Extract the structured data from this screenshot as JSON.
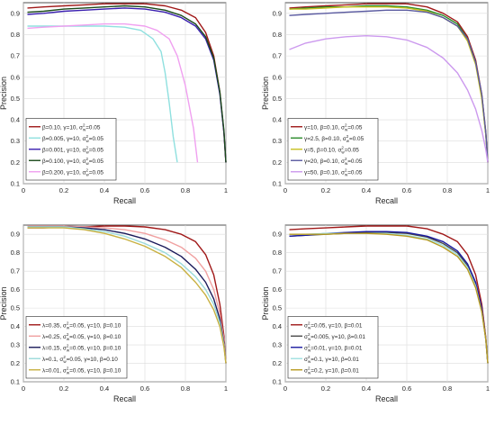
{
  "chart_data": [
    {
      "type": "line",
      "xlabel": "Recall",
      "ylabel": "Precision",
      "xlim": [
        0,
        1
      ],
      "ylim": [
        0.1,
        0.95
      ],
      "xticks": [
        "0",
        "0.2",
        "0.4",
        "0.6",
        "0.8",
        "1"
      ],
      "yticks": [
        "0.1",
        "0.2",
        "0.3",
        "0.4",
        "0.5",
        "0.6",
        "0.7",
        "0.8",
        "0.9"
      ],
      "grid": true,
      "legend_position": "bottom-left",
      "series": [
        {
          "legend": {
            "pre": "β=0.10, γ=10, ",
            "sym": "σ",
            "sub": "w",
            "sup": "2",
            "post": "=0.05"
          },
          "color": "#a01818",
          "x": [
            0.02,
            0.1,
            0.2,
            0.3,
            0.4,
            0.5,
            0.6,
            0.7,
            0.78,
            0.85,
            0.9,
            0.94,
            0.97,
            0.99,
            1.0
          ],
          "y": [
            0.925,
            0.93,
            0.935,
            0.94,
            0.945,
            0.945,
            0.945,
            0.935,
            0.915,
            0.88,
            0.81,
            0.7,
            0.53,
            0.34,
            0.2
          ]
        },
        {
          "legend": {
            "pre": "β=0.005, γ=10, ",
            "sym": "σ",
            "sub": "w",
            "sup": "2",
            "post": "=0.05"
          },
          "color": "#8fe0df",
          "x": [
            0.02,
            0.1,
            0.2,
            0.3,
            0.4,
            0.5,
            0.58,
            0.64,
            0.68,
            0.7,
            0.72,
            0.74,
            0.76
          ],
          "y": [
            0.84,
            0.84,
            0.84,
            0.84,
            0.84,
            0.835,
            0.82,
            0.78,
            0.72,
            0.62,
            0.48,
            0.32,
            0.2
          ]
        },
        {
          "legend": {
            "pre": "β=0.001, γ=10, ",
            "sym": "σ",
            "sub": "w",
            "sup": "2",
            "post": "=0.05"
          },
          "color": "#3a1fb0",
          "x": [
            0.02,
            0.1,
            0.2,
            0.3,
            0.4,
            0.5,
            0.6,
            0.7,
            0.78,
            0.85,
            0.9,
            0.94,
            0.97,
            0.99,
            1.0
          ],
          "y": [
            0.895,
            0.9,
            0.91,
            0.915,
            0.92,
            0.925,
            0.92,
            0.905,
            0.88,
            0.84,
            0.78,
            0.68,
            0.52,
            0.34,
            0.2
          ]
        },
        {
          "legend": {
            "pre": "β=0.100, γ=10, ",
            "sym": "σ",
            "sub": "w",
            "sup": "2",
            "post": "=0.05"
          },
          "color": "#1a4a1a",
          "x": [
            0.02,
            0.1,
            0.2,
            0.3,
            0.4,
            0.5,
            0.6,
            0.7,
            0.78,
            0.85,
            0.9,
            0.94,
            0.97,
            0.99,
            1.0
          ],
          "y": [
            0.905,
            0.91,
            0.92,
            0.925,
            0.93,
            0.935,
            0.93,
            0.915,
            0.89,
            0.85,
            0.79,
            0.69,
            0.53,
            0.35,
            0.2
          ]
        },
        {
          "legend": {
            "pre": "β=0.200, γ=10, ",
            "sym": "σ",
            "sub": "w",
            "sup": "2",
            "post": "=0.05"
          },
          "color": "#f0a0f0",
          "x": [
            0.02,
            0.1,
            0.2,
            0.3,
            0.4,
            0.5,
            0.6,
            0.66,
            0.72,
            0.76,
            0.8,
            0.84,
            0.86
          ],
          "y": [
            0.83,
            0.835,
            0.84,
            0.845,
            0.85,
            0.85,
            0.84,
            0.82,
            0.78,
            0.7,
            0.56,
            0.36,
            0.2
          ]
        }
      ]
    },
    {
      "type": "line",
      "xlabel": "Recall",
      "ylabel": "Precision",
      "xlim": [
        0,
        1
      ],
      "ylim": [
        0.1,
        0.95
      ],
      "xticks": [
        "0",
        "0.2",
        "0.4",
        "0.6",
        "0.8",
        "1"
      ],
      "yticks": [
        "0.1",
        "0.2",
        "0.3",
        "0.4",
        "0.5",
        "0.6",
        "0.7",
        "0.8",
        "0.9"
      ],
      "grid": true,
      "legend_position": "bottom-left",
      "series": [
        {
          "legend": {
            "pre": "γ=10, β=0.10, ",
            "sym": "σ",
            "sub": "w",
            "sup": "2",
            "post": "=0.05"
          },
          "color": "#a01818",
          "x": [
            0.02,
            0.1,
            0.2,
            0.3,
            0.4,
            0.5,
            0.6,
            0.7,
            0.78,
            0.85,
            0.9,
            0.94,
            0.97,
            0.99,
            1.0
          ],
          "y": [
            0.925,
            0.93,
            0.935,
            0.94,
            0.945,
            0.945,
            0.945,
            0.93,
            0.9,
            0.86,
            0.79,
            0.68,
            0.52,
            0.34,
            0.2
          ]
        },
        {
          "legend": {
            "pre": "γ=2.5, β=0.10, ",
            "sym": "σ",
            "sub": "w",
            "sup": "2",
            "post": "=0.05"
          },
          "color": "#2a8a2a",
          "x": [
            0.02,
            0.1,
            0.2,
            0.3,
            0.4,
            0.5,
            0.6,
            0.7,
            0.78,
            0.85,
            0.9,
            0.94,
            0.97,
            0.99,
            1.0
          ],
          "y": [
            0.92,
            0.925,
            0.93,
            0.93,
            0.935,
            0.935,
            0.93,
            0.915,
            0.89,
            0.85,
            0.78,
            0.67,
            0.51,
            0.33,
            0.2
          ]
        },
        {
          "legend": {
            "pre": "γ=5, β=0.10, ",
            "sym": "σ",
            "sub": "w",
            "sup": "2",
            "post": "=0.05"
          },
          "color": "#c8c020",
          "x": [
            0.02,
            0.1,
            0.2,
            0.3,
            0.4,
            0.5,
            0.6,
            0.7,
            0.78,
            0.85,
            0.9,
            0.94,
            0.97,
            0.99,
            1.0
          ],
          "y": [
            0.92,
            0.92,
            0.925,
            0.93,
            0.93,
            0.93,
            0.925,
            0.91,
            0.88,
            0.84,
            0.77,
            0.66,
            0.5,
            0.33,
            0.2
          ]
        },
        {
          "legend": {
            "pre": "γ=20, β=0.10, ",
            "sym": "σ",
            "sub": "w",
            "sup": "2",
            "post": "=0.05"
          },
          "color": "#5a5aa0",
          "x": [
            0.02,
            0.1,
            0.2,
            0.3,
            0.4,
            0.5,
            0.6,
            0.7,
            0.78,
            0.85,
            0.9,
            0.94,
            0.97,
            0.99,
            1.0
          ],
          "y": [
            0.89,
            0.895,
            0.9,
            0.905,
            0.91,
            0.915,
            0.915,
            0.905,
            0.88,
            0.84,
            0.78,
            0.67,
            0.52,
            0.34,
            0.2
          ]
        },
        {
          "legend": {
            "pre": "γ=50, β=0.10, ",
            "sym": "σ",
            "sub": "w",
            "sup": "2",
            "post": "=0.05"
          },
          "color": "#cc99ee",
          "x": [
            0.02,
            0.1,
            0.2,
            0.3,
            0.4,
            0.5,
            0.6,
            0.7,
            0.78,
            0.85,
            0.9,
            0.94,
            0.97,
            0.99,
            1.0
          ],
          "y": [
            0.73,
            0.76,
            0.78,
            0.79,
            0.795,
            0.79,
            0.775,
            0.74,
            0.69,
            0.62,
            0.54,
            0.45,
            0.35,
            0.26,
            0.2
          ]
        }
      ]
    },
    {
      "type": "line",
      "xlabel": "Recall",
      "ylabel": "Precision",
      "xlim": [
        0,
        1
      ],
      "ylim": [
        0.1,
        0.95
      ],
      "xticks": [
        "0",
        "0.2",
        "0.4",
        "0.6",
        "0.8",
        "1"
      ],
      "yticks": [
        "0.1",
        "0.2",
        "0.3",
        "0.4",
        "0.5",
        "0.6",
        "0.7",
        "0.8",
        "0.9"
      ],
      "grid": true,
      "legend_position": "bottom-left",
      "series": [
        {
          "legend": {
            "pre": "λ=0.35, ",
            "sym": "σ",
            "sub": "w",
            "sup": "2",
            "post": "=0.05, γ=10, β=0.10"
          },
          "color": "#a01818",
          "x": [
            0.02,
            0.1,
            0.2,
            0.3,
            0.4,
            0.5,
            0.6,
            0.7,
            0.78,
            0.85,
            0.9,
            0.94,
            0.97,
            0.99,
            1.0
          ],
          "y": [
            0.935,
            0.935,
            0.94,
            0.94,
            0.945,
            0.945,
            0.94,
            0.925,
            0.9,
            0.86,
            0.79,
            0.68,
            0.52,
            0.35,
            0.2
          ]
        },
        {
          "legend": {
            "pre": "λ=0.25, ",
            "sym": "σ",
            "sub": "w",
            "sup": "2",
            "post": "=0.05, γ=10, β=0.10"
          },
          "color": "#f0a0a0",
          "x": [
            0.02,
            0.1,
            0.2,
            0.3,
            0.4,
            0.5,
            0.6,
            0.7,
            0.78,
            0.85,
            0.9,
            0.94,
            0.97,
            0.99,
            1.0
          ],
          "y": [
            0.945,
            0.945,
            0.945,
            0.94,
            0.935,
            0.925,
            0.905,
            0.87,
            0.83,
            0.77,
            0.7,
            0.6,
            0.47,
            0.33,
            0.2
          ]
        },
        {
          "legend": {
            "pre": "λ=0.15, ",
            "sym": "σ",
            "sub": "w",
            "sup": "2",
            "post": "=0.05, γ=10, β=0.10"
          },
          "color": "#1a1a5a",
          "x": [
            0.02,
            0.1,
            0.2,
            0.3,
            0.4,
            0.5,
            0.6,
            0.7,
            0.78,
            0.85,
            0.9,
            0.94,
            0.97,
            0.99,
            1.0
          ],
          "y": [
            0.94,
            0.94,
            0.94,
            0.935,
            0.925,
            0.905,
            0.875,
            0.83,
            0.78,
            0.71,
            0.64,
            0.55,
            0.44,
            0.31,
            0.2
          ]
        },
        {
          "legend": {
            "pre": "λ=0.1, ",
            "sym": "σ",
            "sub": "w",
            "sup": "2",
            "post": "=0.05, γ=10, β=0.10"
          },
          "color": "#9adada",
          "x": [
            0.02,
            0.1,
            0.2,
            0.3,
            0.4,
            0.5,
            0.6,
            0.7,
            0.78,
            0.85,
            0.9,
            0.94,
            0.97,
            0.99,
            1.0
          ],
          "y": [
            0.94,
            0.94,
            0.94,
            0.93,
            0.915,
            0.89,
            0.85,
            0.8,
            0.74,
            0.67,
            0.6,
            0.52,
            0.42,
            0.3,
            0.2
          ]
        },
        {
          "legend": {
            "pre": "λ=0.01, ",
            "sym": "σ",
            "sub": "w",
            "sup": "2",
            "post": "=0.05, γ=10, β=0.10"
          },
          "color": "#c8b040",
          "x": [
            0.02,
            0.1,
            0.2,
            0.3,
            0.4,
            0.5,
            0.6,
            0.7,
            0.78,
            0.85,
            0.9,
            0.94,
            0.97,
            0.99,
            1.0
          ],
          "y": [
            0.935,
            0.935,
            0.935,
            0.925,
            0.905,
            0.875,
            0.835,
            0.78,
            0.72,
            0.64,
            0.57,
            0.49,
            0.4,
            0.29,
            0.2
          ]
        }
      ]
    },
    {
      "type": "line",
      "xlabel": "Recall",
      "ylabel": "Precision",
      "xlim": [
        0,
        1
      ],
      "ylim": [
        0.1,
        0.95
      ],
      "xticks": [
        "0",
        "0.2",
        "0.4",
        "0.6",
        "0.8",
        "1"
      ],
      "yticks": [
        "0.1",
        "0.2",
        "0.3",
        "0.4",
        "0.5",
        "0.6",
        "0.7",
        "0.8",
        "0.9"
      ],
      "grid": true,
      "legend_position": "bottom-left",
      "series": [
        {
          "legend": {
            "pre": "",
            "sym": "σ",
            "sub": "w",
            "sup": "2",
            "post": "=0.05, γ=10, β=0.01"
          },
          "color": "#a01818",
          "x": [
            0.02,
            0.1,
            0.2,
            0.3,
            0.4,
            0.5,
            0.6,
            0.7,
            0.78,
            0.85,
            0.9,
            0.94,
            0.97,
            0.99,
            1.0
          ],
          "y": [
            0.925,
            0.93,
            0.935,
            0.94,
            0.945,
            0.945,
            0.945,
            0.93,
            0.9,
            0.86,
            0.79,
            0.68,
            0.52,
            0.34,
            0.2
          ]
        },
        {
          "legend": {
            "pre": "",
            "sym": "σ",
            "sub": "w",
            "sup": "2",
            "post": "=0.005, γ=10, β=0.01"
          },
          "color": "#4a4a4a",
          "x": [
            0.02,
            0.1,
            0.2,
            0.3,
            0.4,
            0.5,
            0.6,
            0.7,
            0.78,
            0.85,
            0.9,
            0.94,
            0.97,
            0.99,
            1.0
          ],
          "y": [
            0.89,
            0.895,
            0.9,
            0.905,
            0.91,
            0.91,
            0.905,
            0.885,
            0.85,
            0.8,
            0.73,
            0.63,
            0.49,
            0.33,
            0.2
          ]
        },
        {
          "legend": {
            "pre": "",
            "sym": "σ",
            "sub": "w",
            "sup": "2",
            "post": "=0.01, γ=10, β=0.01"
          },
          "color": "#1a1aa0",
          "x": [
            0.02,
            0.1,
            0.2,
            0.3,
            0.4,
            0.5,
            0.6,
            0.7,
            0.78,
            0.85,
            0.9,
            0.94,
            0.97,
            0.99,
            1.0
          ],
          "y": [
            0.89,
            0.895,
            0.905,
            0.91,
            0.915,
            0.915,
            0.91,
            0.89,
            0.86,
            0.81,
            0.74,
            0.64,
            0.5,
            0.33,
            0.2
          ]
        },
        {
          "legend": {
            "pre": "",
            "sym": "σ",
            "sub": "w",
            "sup": "2",
            "post": "=0.1, γ=10, β=0.01"
          },
          "color": "#a0e0e0",
          "x": [
            0.02,
            0.1,
            0.2,
            0.3,
            0.4,
            0.5,
            0.6,
            0.7,
            0.78,
            0.85,
            0.9,
            0.94,
            0.97,
            0.99,
            1.0
          ],
          "y": [
            0.9,
            0.9,
            0.905,
            0.905,
            0.905,
            0.905,
            0.895,
            0.875,
            0.84,
            0.79,
            0.72,
            0.62,
            0.48,
            0.33,
            0.2
          ]
        },
        {
          "legend": {
            "pre": "",
            "sym": "σ",
            "sub": "w",
            "sup": "2",
            "post": "=0.2, γ=10, β=0.01"
          },
          "color": "#b89a20",
          "x": [
            0.02,
            0.1,
            0.2,
            0.3,
            0.4,
            0.5,
            0.6,
            0.7,
            0.78,
            0.85,
            0.9,
            0.94,
            0.97,
            0.99,
            1.0
          ],
          "y": [
            0.9,
            0.9,
            0.9,
            0.905,
            0.905,
            0.9,
            0.89,
            0.87,
            0.83,
            0.78,
            0.71,
            0.61,
            0.48,
            0.33,
            0.2
          ]
        }
      ]
    }
  ]
}
